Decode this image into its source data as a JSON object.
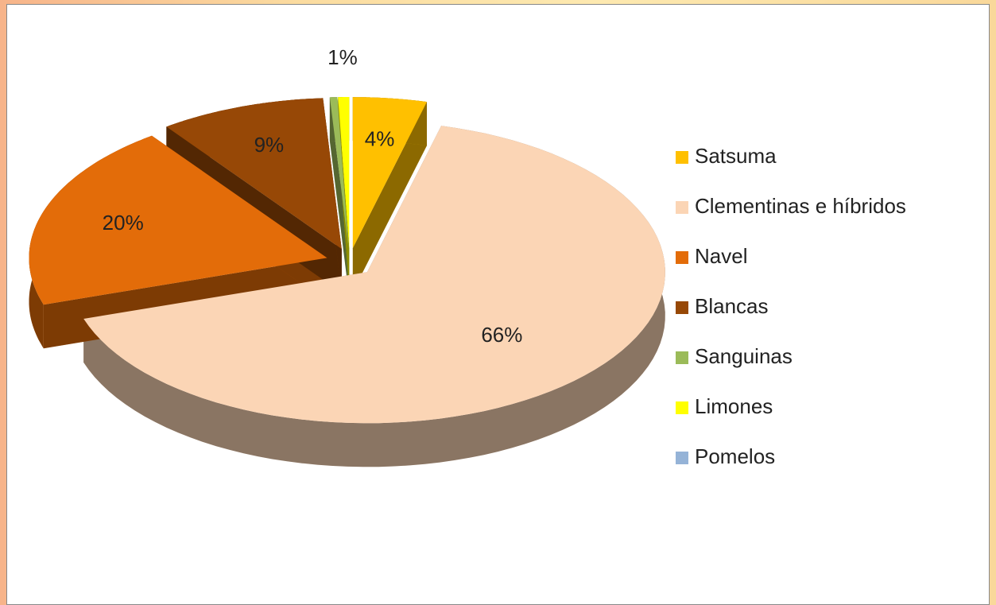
{
  "chart_data": {
    "type": "pie",
    "three_d": true,
    "exploded": true,
    "categories": [
      "Satsuma",
      "Clementinas e híbridos",
      "Navel",
      "Blancas",
      "Sanguinas",
      "Limones",
      "Pomelos"
    ],
    "values": [
      4,
      66,
      20,
      9,
      0.4,
      0.6,
      0
    ],
    "value_labels": [
      "4%",
      "66%",
      "20%",
      "9%",
      null,
      "1%",
      null
    ],
    "colors": [
      "#ffc000",
      "#fbd5b5",
      "#e36c09",
      "#974806",
      "#9bbb59",
      "#ffff00",
      "#95b3d7"
    ],
    "legend": "right"
  }
}
